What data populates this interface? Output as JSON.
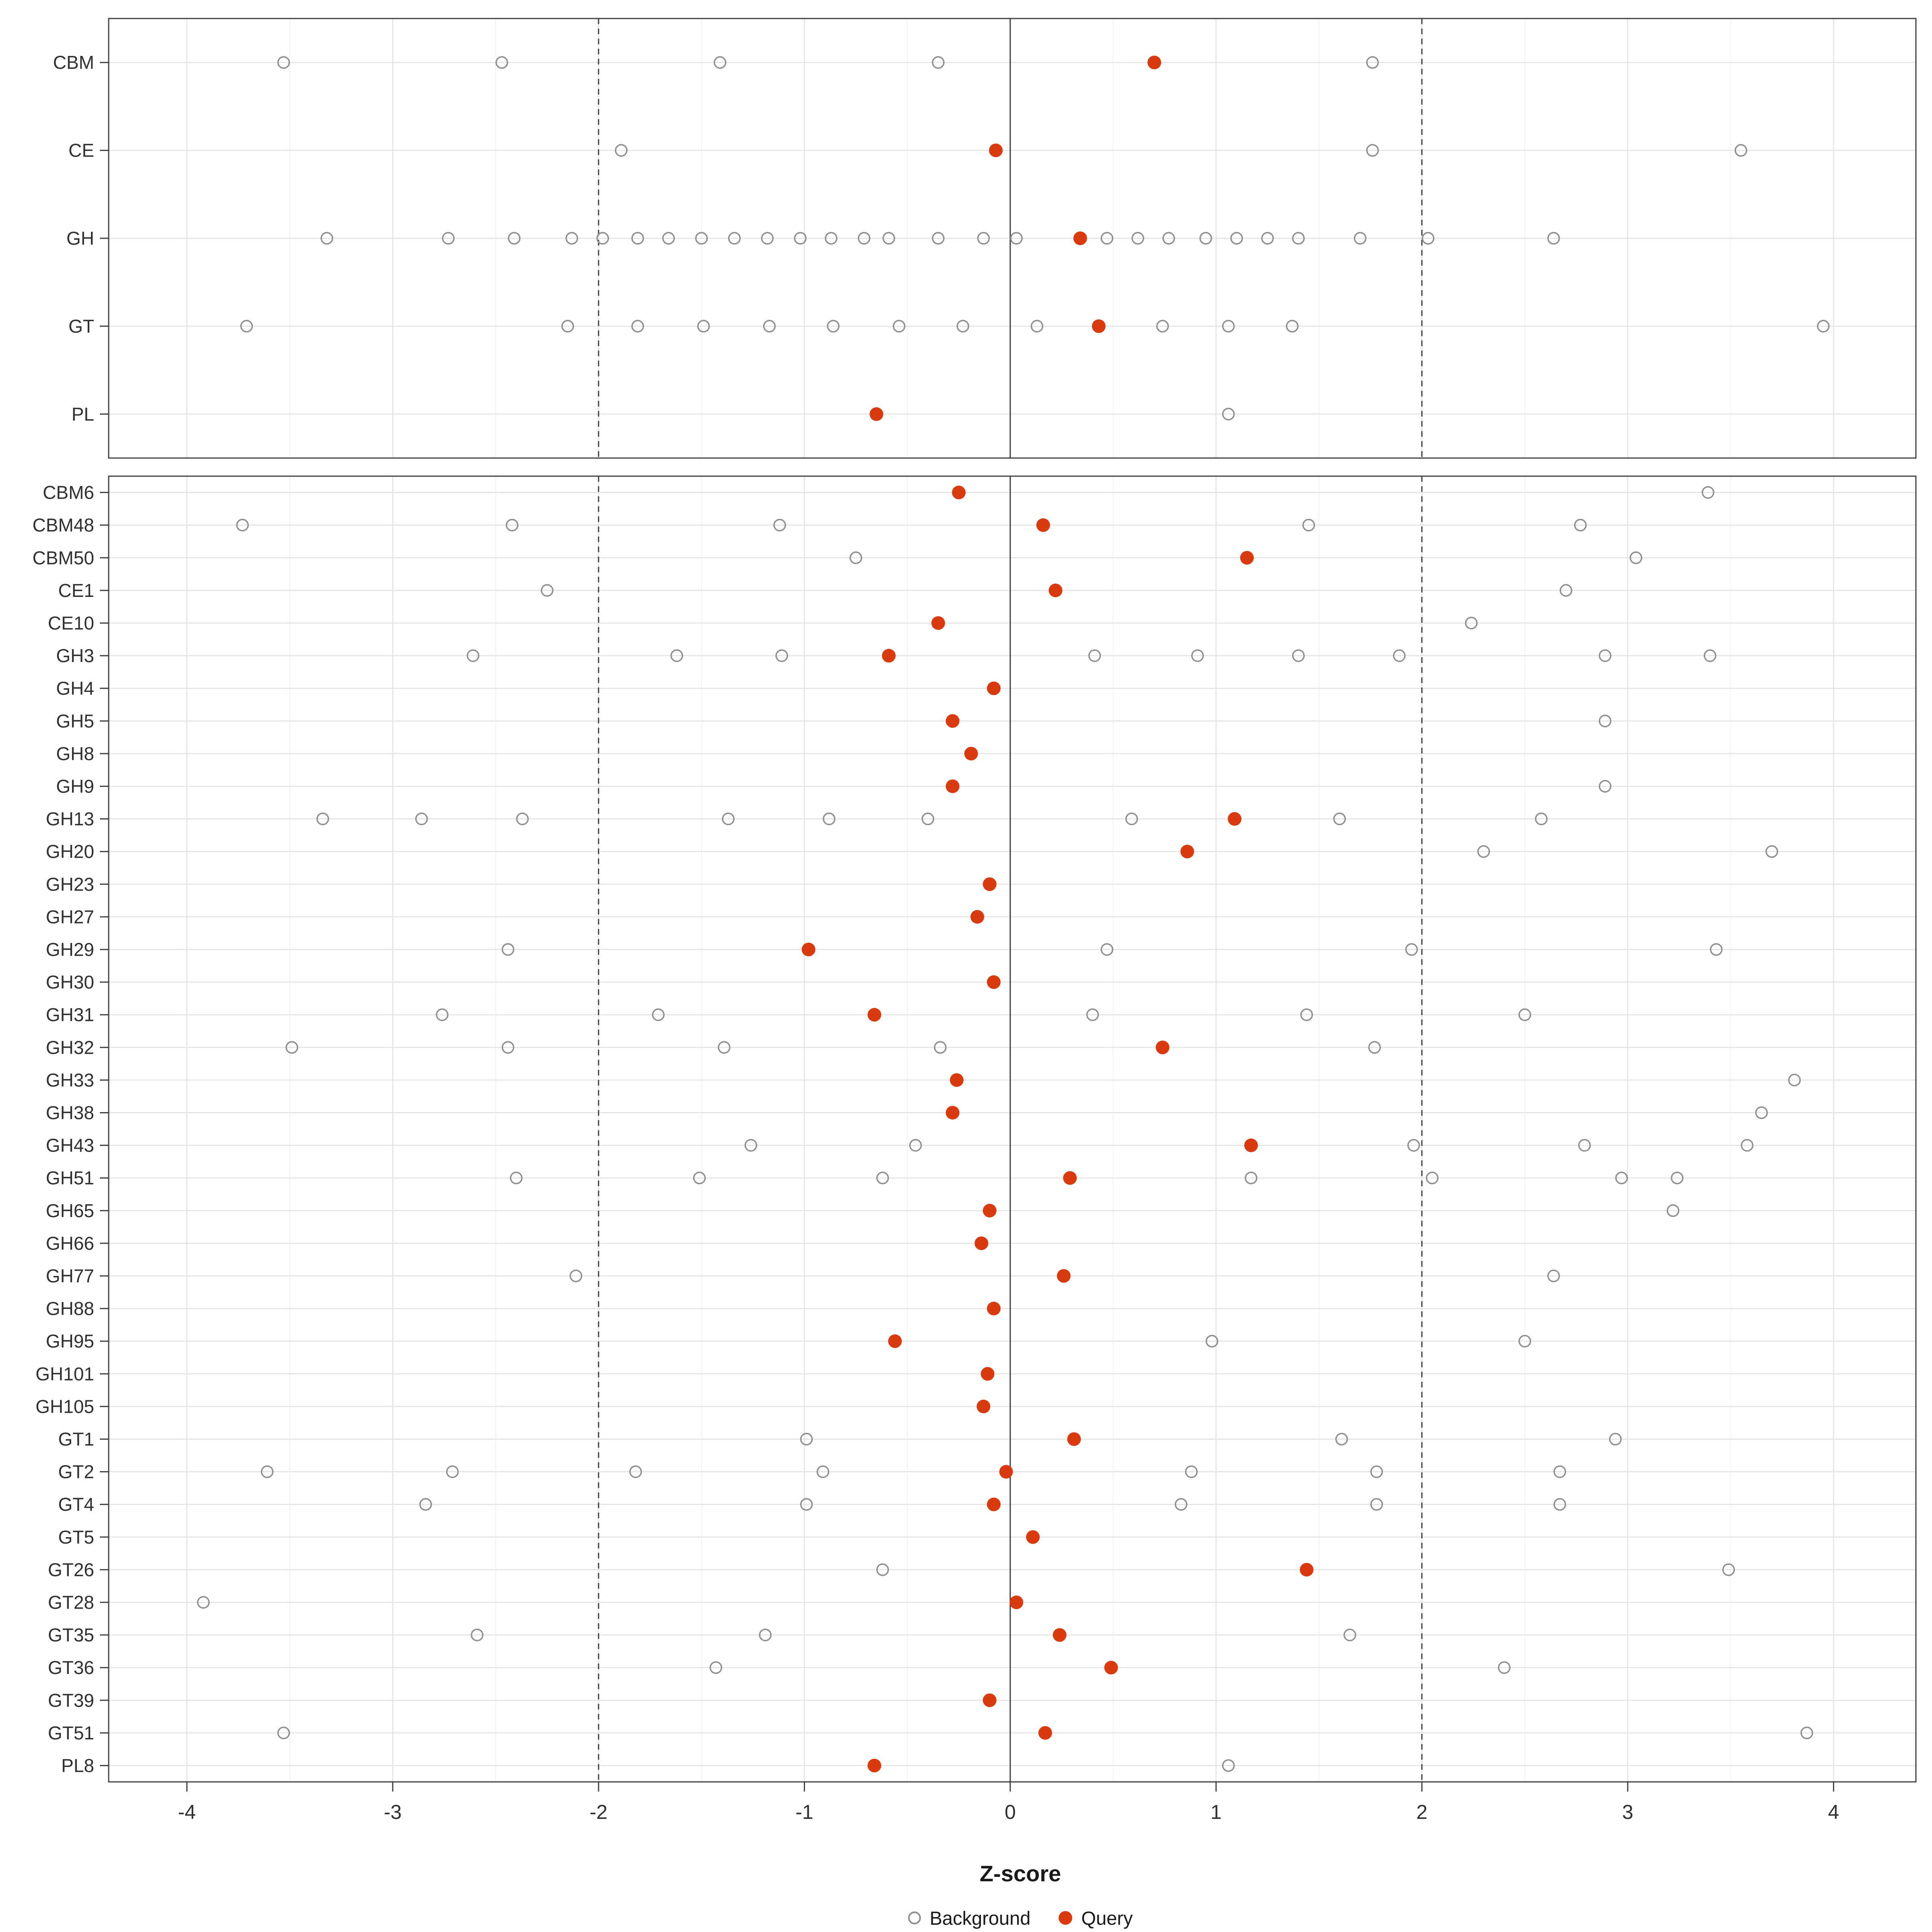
{
  "chart_data": {
    "type": "scatter",
    "title": "",
    "xlabel": "Z-score",
    "legend": {
      "background": "Background",
      "query": "Query"
    },
    "axis": {
      "min": -4.38,
      "max": 4.4,
      "major_ticks": [
        -4,
        -3,
        -2,
        -1,
        0,
        1,
        2,
        3,
        4
      ],
      "minor_ticks": [
        -3.5,
        -2.5,
        -1.5,
        -0.5,
        0.5,
        1.5,
        2.5,
        3.5
      ],
      "dashed_ref_lines": [
        -2,
        2
      ],
      "solid_ref_line": 0
    },
    "panels": [
      {
        "id": "summary",
        "rows": [
          {
            "label": "CBM",
            "background": [
              -3.53,
              -2.47,
              -1.41,
              -0.35,
              1.76
            ],
            "query": 0.7
          },
          {
            "label": "CE",
            "background": [
              -1.89,
              1.76,
              3.55
            ],
            "query": -0.07
          },
          {
            "label": "GH",
            "background": [
              -3.32,
              -2.73,
              -2.41,
              -2.13,
              -1.98,
              -1.81,
              -1.66,
              -1.5,
              -1.34,
              -1.18,
              -1.02,
              -0.87,
              -0.71,
              -0.59,
              -0.35,
              -0.13,
              0.03,
              0.47,
              0.62,
              0.77,
              0.95,
              1.1,
              1.25,
              1.4,
              1.7,
              2.03,
              2.64
            ],
            "query": 0.34
          },
          {
            "label": "GT",
            "background": [
              -3.71,
              -2.15,
              -1.81,
              -1.49,
              -1.17,
              -0.86,
              -0.54,
              -0.23,
              0.13,
              0.74,
              1.06,
              1.37,
              3.95
            ],
            "query": 0.43
          },
          {
            "label": "PL",
            "background": [
              1.06
            ],
            "query": -0.65
          }
        ]
      },
      {
        "id": "families",
        "rows": [
          {
            "label": "CBM6",
            "background": [
              3.39
            ],
            "query": -0.25
          },
          {
            "label": "CBM48",
            "background": [
              -3.73,
              -2.42,
              -1.12,
              1.45,
              2.77
            ],
            "query": 0.16
          },
          {
            "label": "CBM50",
            "background": [
              -0.75,
              3.04
            ],
            "query": 1.15
          },
          {
            "label": "CE1",
            "background": [
              -2.25,
              2.7
            ],
            "query": 0.22
          },
          {
            "label": "CE10",
            "background": [
              2.24
            ],
            "query": -0.35
          },
          {
            "label": "GH3",
            "background": [
              -2.61,
              -1.62,
              -1.11,
              0.41,
              0.91,
              1.4,
              1.89,
              2.89,
              3.4
            ],
            "query": -0.59
          },
          {
            "label": "GH4",
            "background": [],
            "query": -0.08
          },
          {
            "label": "GH5",
            "background": [
              2.89
            ],
            "query": -0.28
          },
          {
            "label": "GH8",
            "background": [],
            "query": -0.19
          },
          {
            "label": "GH9",
            "background": [
              2.89
            ],
            "query": -0.28
          },
          {
            "label": "GH13",
            "background": [
              -3.34,
              -2.86,
              -2.37,
              -1.37,
              -0.88,
              -0.4,
              0.59,
              1.6,
              2.58
            ],
            "query": 1.09
          },
          {
            "label": "GH20",
            "background": [
              2.3,
              3.7
            ],
            "query": 0.86
          },
          {
            "label": "GH23",
            "background": [],
            "query": -0.1
          },
          {
            "label": "GH27",
            "background": [],
            "query": -0.16
          },
          {
            "label": "GH29",
            "background": [
              -2.44,
              0.47,
              1.95,
              3.43
            ],
            "query": -0.98
          },
          {
            "label": "GH30",
            "background": [],
            "query": -0.08
          },
          {
            "label": "GH31",
            "background": [
              -2.76,
              -1.71,
              0.4,
              1.44,
              2.5
            ],
            "query": -0.66
          },
          {
            "label": "GH32",
            "background": [
              -3.49,
              -2.44,
              -1.39,
              -0.34,
              1.77
            ],
            "query": 0.74
          },
          {
            "label": "GH33",
            "background": [
              3.81
            ],
            "query": -0.26
          },
          {
            "label": "GH38",
            "background": [
              3.65
            ],
            "query": -0.28
          },
          {
            "label": "GH43",
            "background": [
              -1.26,
              -0.46,
              1.96,
              2.79,
              3.58
            ],
            "query": 1.17
          },
          {
            "label": "GH51",
            "background": [
              -2.4,
              -1.51,
              -0.62,
              1.17,
              2.05,
              2.97,
              3.24
            ],
            "query": 0.29
          },
          {
            "label": "GH65",
            "background": [
              3.22
            ],
            "query": -0.1
          },
          {
            "label": "GH66",
            "background": [],
            "query": -0.14
          },
          {
            "label": "GH77",
            "background": [
              -2.11,
              2.64
            ],
            "query": 0.26
          },
          {
            "label": "GH88",
            "background": [],
            "query": -0.08
          },
          {
            "label": "GH95",
            "background": [
              0.98,
              2.5
            ],
            "query": -0.56
          },
          {
            "label": "GH101",
            "background": [],
            "query": -0.11
          },
          {
            "label": "GH105",
            "background": [],
            "query": -0.13
          },
          {
            "label": "GT1",
            "background": [
              -0.99,
              1.61,
              2.94
            ],
            "query": 0.31
          },
          {
            "label": "GT2",
            "background": [
              -3.61,
              -2.71,
              -1.82,
              -0.91,
              0.88,
              1.78,
              2.67
            ],
            "query": -0.02
          },
          {
            "label": "GT4",
            "background": [
              -2.84,
              -0.99,
              0.83,
              1.78,
              2.67
            ],
            "query": -0.08
          },
          {
            "label": "GT5",
            "background": [],
            "query": 0.11
          },
          {
            "label": "GT26",
            "background": [
              -0.62,
              3.49
            ],
            "query": 1.44
          },
          {
            "label": "GT28",
            "background": [
              -3.92
            ],
            "query": 0.03
          },
          {
            "label": "GT35",
            "background": [
              -2.59,
              -1.19,
              1.65
            ],
            "query": 0.24
          },
          {
            "label": "GT36",
            "background": [
              -1.43,
              2.4
            ],
            "query": 0.49
          },
          {
            "label": "GT39",
            "background": [],
            "query": -0.1
          },
          {
            "label": "GT51",
            "background": [
              -3.53,
              3.87
            ],
            "query": 0.17
          },
          {
            "label": "PL8",
            "background": [
              1.06
            ],
            "query": -0.66
          }
        ]
      }
    ]
  },
  "style": {
    "query_color": "#D93A0F",
    "background_stroke": "#8F8F8F",
    "grid_major": "#E2E2E2",
    "grid_minor": "#F1F1F1",
    "panel_border": "#404040",
    "ref_line": "#3C3C3C",
    "label_color": "#1A1A1A",
    "tick_text_color": "#303030"
  }
}
